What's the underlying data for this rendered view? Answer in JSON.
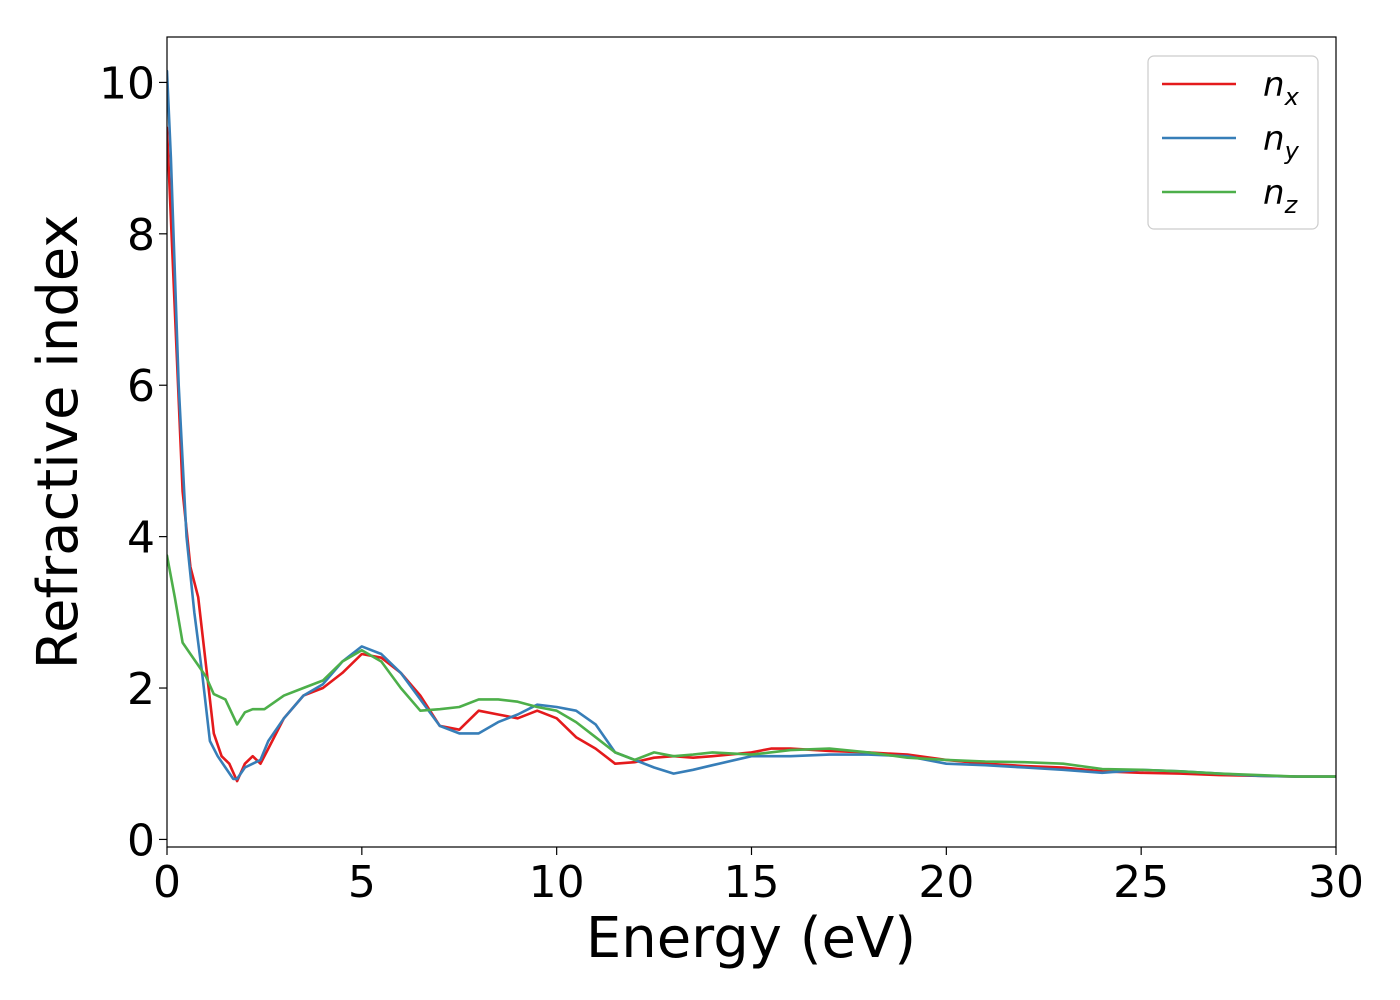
{
  "chart_data": {
    "type": "line",
    "title": "",
    "xlabel": "Energy (eV)",
    "ylabel": "Refractive index",
    "xlim": [
      0,
      30
    ],
    "ylim": [
      -0.1,
      10.6
    ],
    "xticks": [
      0,
      5,
      10,
      15,
      20,
      25,
      30
    ],
    "yticks": [
      0,
      2,
      4,
      6,
      8,
      10
    ],
    "grid": false,
    "legend_position": "top-right",
    "series": [
      {
        "name": "n",
        "subscript": "x",
        "color": "#e41a1c",
        "x": [
          0,
          0.2,
          0.4,
          0.6,
          0.8,
          1.0,
          1.2,
          1.4,
          1.6,
          1.8,
          2.0,
          2.2,
          2.4,
          2.6,
          3.0,
          3.5,
          4.0,
          4.5,
          5.0,
          5.5,
          6.0,
          6.5,
          7.0,
          7.5,
          8.0,
          8.5,
          9.0,
          9.5,
          10.0,
          10.5,
          11.0,
          11.5,
          12.0,
          12.5,
          13.0,
          13.5,
          14.0,
          15.0,
          15.5,
          16.0,
          17.0,
          18.0,
          19.0,
          20.0,
          21.0,
          22.0,
          23.0,
          24.0,
          25.0,
          26.0,
          27.0,
          28.0,
          29.0,
          30.0
        ],
        "y": [
          9.4,
          7.0,
          4.6,
          3.6,
          3.2,
          2.3,
          1.4,
          1.1,
          1.0,
          0.77,
          1.0,
          1.1,
          1.0,
          1.2,
          1.6,
          1.9,
          2.0,
          2.2,
          2.45,
          2.4,
          2.2,
          1.9,
          1.5,
          1.45,
          1.7,
          1.65,
          1.6,
          1.7,
          1.6,
          1.35,
          1.2,
          1.0,
          1.02,
          1.08,
          1.1,
          1.08,
          1.1,
          1.15,
          1.2,
          1.2,
          1.17,
          1.15,
          1.12,
          1.05,
          1.0,
          0.97,
          0.95,
          0.9,
          0.88,
          0.87,
          0.85,
          0.84,
          0.83,
          0.83
        ]
      },
      {
        "name": "n",
        "subscript": "y",
        "color": "#377eb8",
        "x": [
          0,
          0.1,
          0.3,
          0.5,
          0.7,
          0.9,
          1.1,
          1.3,
          1.5,
          1.7,
          1.8,
          2.0,
          2.2,
          2.4,
          2.6,
          3.0,
          3.5,
          4.0,
          4.5,
          5.0,
          5.5,
          6.0,
          6.5,
          7.0,
          7.5,
          8.0,
          8.5,
          9.0,
          9.5,
          10.0,
          10.5,
          11.0,
          11.5,
          12.0,
          12.5,
          13.0,
          13.5,
          14.0,
          15.0,
          16.0,
          17.0,
          18.0,
          19.0,
          20.0,
          21.0,
          22.0,
          23.0,
          24.0,
          25.0,
          26.0,
          27.0,
          28.0,
          29.0,
          30.0
        ],
        "y": [
          10.15,
          9.0,
          6.0,
          4.0,
          3.0,
          2.2,
          1.3,
          1.1,
          0.95,
          0.8,
          0.8,
          0.95,
          1.0,
          1.05,
          1.3,
          1.6,
          1.9,
          2.05,
          2.35,
          2.55,
          2.45,
          2.2,
          1.85,
          1.5,
          1.4,
          1.4,
          1.55,
          1.65,
          1.78,
          1.75,
          1.7,
          1.52,
          1.15,
          1.05,
          0.95,
          0.87,
          0.92,
          0.98,
          1.1,
          1.1,
          1.12,
          1.12,
          1.1,
          1.0,
          0.98,
          0.95,
          0.92,
          0.88,
          0.92,
          0.9,
          0.87,
          0.84,
          0.83,
          0.83
        ]
      },
      {
        "name": "n",
        "subscript": "z",
        "color": "#4daf4a",
        "x": [
          0,
          0.2,
          0.4,
          0.6,
          0.8,
          1.0,
          1.2,
          1.5,
          1.8,
          2.0,
          2.2,
          2.5,
          3.0,
          3.5,
          4.0,
          4.5,
          5.0,
          5.5,
          6.0,
          6.5,
          7.0,
          7.5,
          8.0,
          8.5,
          9.0,
          9.5,
          10.0,
          10.5,
          11.0,
          11.5,
          12.0,
          12.5,
          13.0,
          13.5,
          14.0,
          15.0,
          16.0,
          17.0,
          18.0,
          19.0,
          20.0,
          21.0,
          22.0,
          23.0,
          24.0,
          25.0,
          26.0,
          27.0,
          28.0,
          29.0,
          30.0
        ],
        "y": [
          3.75,
          3.2,
          2.6,
          2.45,
          2.3,
          2.15,
          1.92,
          1.85,
          1.52,
          1.68,
          1.72,
          1.72,
          1.9,
          2.0,
          2.1,
          2.35,
          2.5,
          2.35,
          2.0,
          1.7,
          1.72,
          1.75,
          1.85,
          1.85,
          1.82,
          1.75,
          1.7,
          1.55,
          1.35,
          1.15,
          1.05,
          1.15,
          1.1,
          1.12,
          1.15,
          1.12,
          1.18,
          1.2,
          1.15,
          1.08,
          1.05,
          1.03,
          1.02,
          1.0,
          0.93,
          0.92,
          0.9,
          0.87,
          0.85,
          0.83,
          0.83
        ]
      }
    ]
  }
}
